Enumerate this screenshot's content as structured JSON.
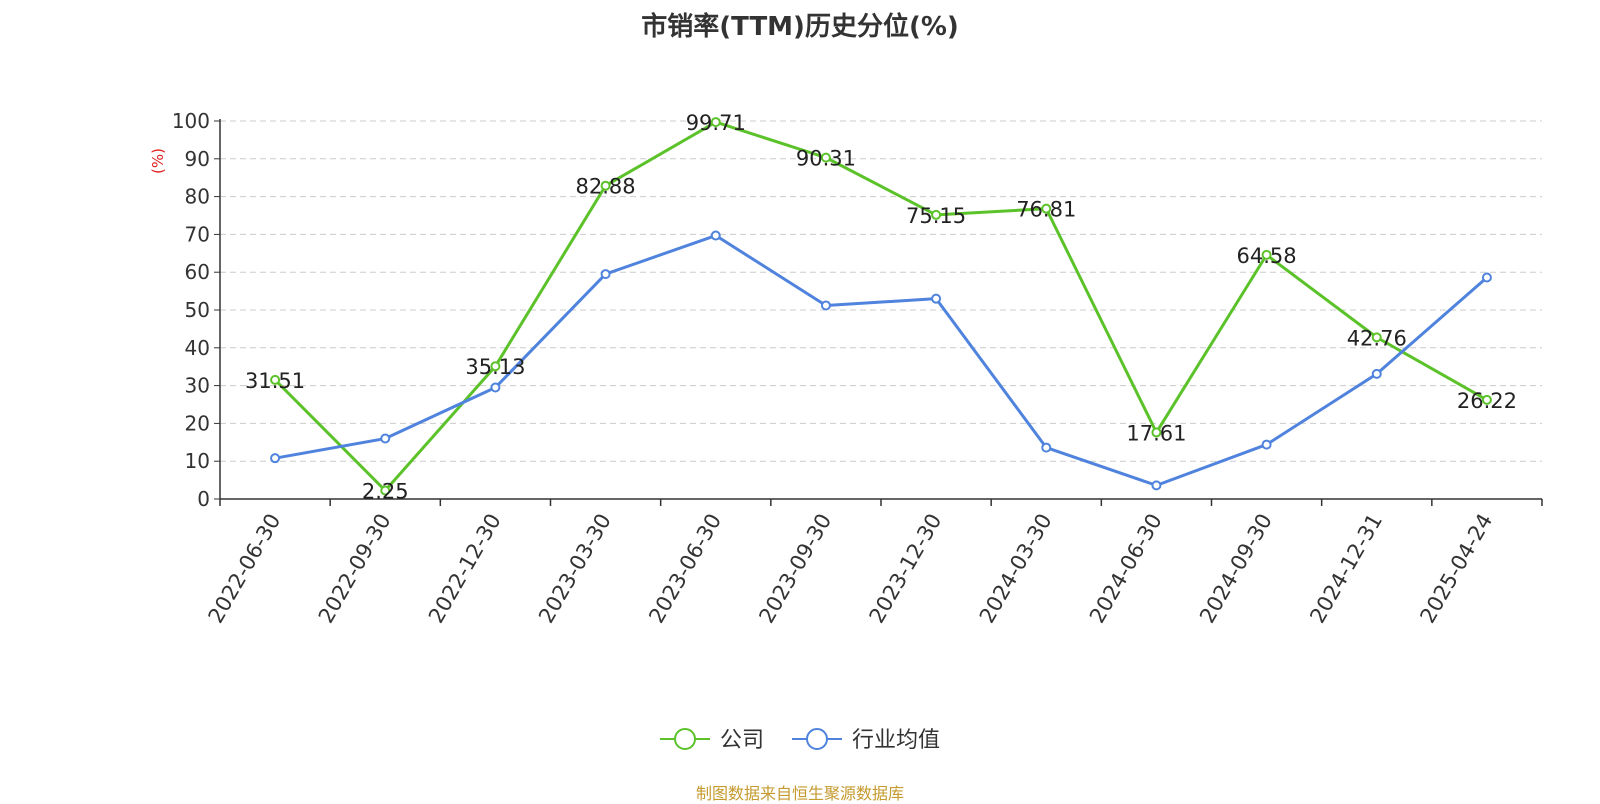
{
  "chart_data": {
    "type": "line",
    "title": "市销率(TTM)历史分位(%)",
    "ylabel": "(%)",
    "xlabel": "",
    "ylim": [
      0,
      100
    ],
    "yticks": [
      0,
      10,
      20,
      30,
      40,
      50,
      60,
      70,
      80,
      90,
      100
    ],
    "grid": true,
    "legend_position": "bottom-center",
    "categories": [
      "2022-06-30",
      "2022-09-30",
      "2022-12-30",
      "2023-03-30",
      "2023-06-30",
      "2023-09-30",
      "2023-12-30",
      "2024-03-30",
      "2024-06-30",
      "2024-09-30",
      "2024-12-31",
      "2025-04-24"
    ],
    "series": [
      {
        "name": "公司",
        "color": "#5cc22a",
        "values": [
          31.51,
          2.25,
          35.13,
          82.88,
          99.71,
          90.31,
          75.15,
          76.81,
          17.61,
          64.58,
          42.76,
          26.22
        ],
        "labels": [
          "31.51",
          "2.25",
          "35.13",
          "82.88",
          "99.71",
          "90.31",
          "75.15",
          "76.81",
          "17.61",
          "64.58",
          "42.76",
          "26.22"
        ],
        "show_labels": true
      },
      {
        "name": "行业均值",
        "color": "#4f83dd",
        "values": [
          10.8,
          16.0,
          29.5,
          59.5,
          69.7,
          51.2,
          53.0,
          13.6,
          3.6,
          14.4,
          33.1,
          58.6
        ],
        "show_labels": false
      }
    ]
  },
  "footer": {
    "source": "制图数据来自恒生聚源数据库"
  }
}
